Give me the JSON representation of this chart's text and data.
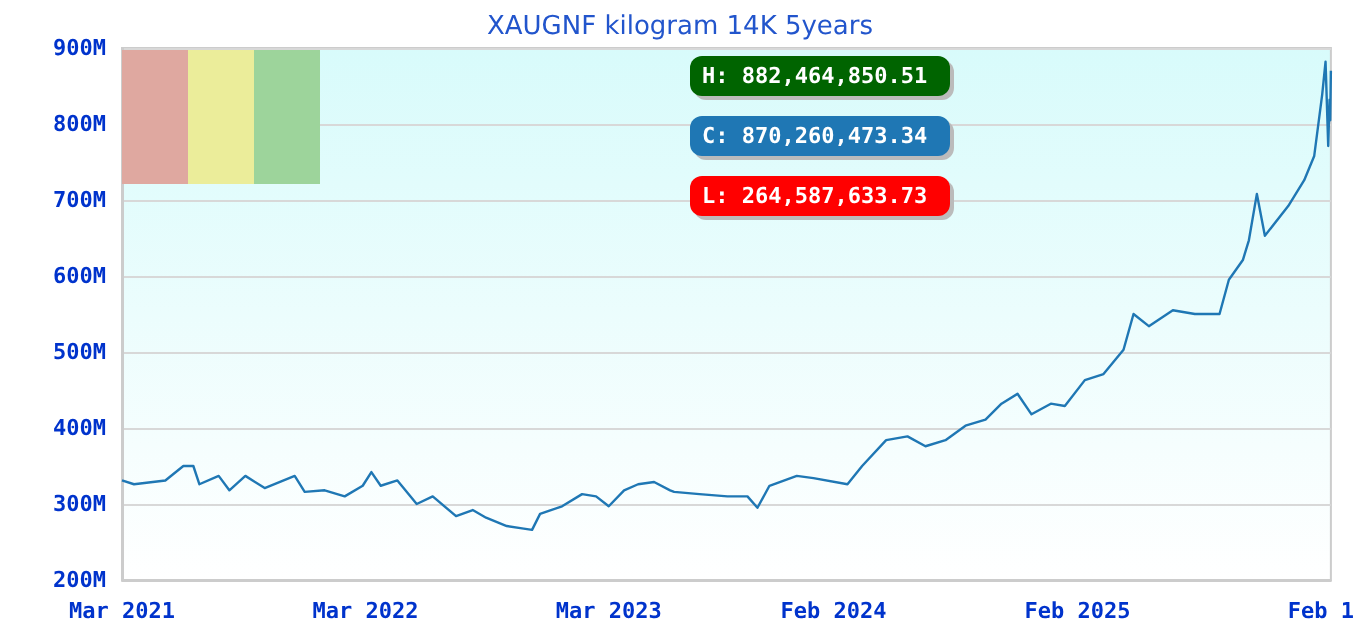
{
  "chart_data": {
    "type": "line",
    "title": "XAUGNF kilogram 14K 5years",
    "grid": "y",
    "marker": "none",
    "line_style": "solid",
    "xlim": [
      "2021-03-01",
      "2026-02-16"
    ],
    "xticks": [
      {
        "value": "2021-03-01",
        "label": "Mar 2021"
      },
      {
        "value": "2022-03-01",
        "label": "Mar 2022"
      },
      {
        "value": "2023-03-01",
        "label": "Mar 2023"
      },
      {
        "value": "2024-02-01",
        "label": "Feb 2024"
      },
      {
        "value": "2025-02-01",
        "label": "Feb 2025"
      },
      {
        "value": "2026-02-01",
        "label": "Feb 1"
      }
    ],
    "ylim": [
      200,
      900
    ],
    "yticks": [
      {
        "value": 200,
        "label": "200M"
      },
      {
        "value": 300,
        "label": "300M"
      },
      {
        "value": 400,
        "label": "400M"
      },
      {
        "value": 500,
        "label": "500M"
      },
      {
        "value": 600,
        "label": "600M"
      },
      {
        "value": 700,
        "label": "700M"
      },
      {
        "value": 800,
        "label": "800M"
      },
      {
        "value": 900,
        "label": "900M"
      }
    ],
    "annotations": [
      "H: 882,464,850.51",
      "C: 870,260,473.34",
      "L: 264,587,633.73"
    ],
    "x": [
      "2021-03-01",
      "2021-03-19",
      "2021-05-05",
      "2021-06-01",
      "2021-06-16",
      "2021-06-25",
      "2021-07-24",
      "2021-08-09",
      "2021-09-02",
      "2021-10-01",
      "2021-11-15",
      "2021-11-30",
      "2021-12-30",
      "2022-01-29",
      "2022-02-25",
      "2022-03-10",
      "2022-03-24",
      "2022-04-18",
      "2022-05-17",
      "2022-06-10",
      "2022-07-15",
      "2022-08-09",
      "2022-08-29",
      "2022-09-29",
      "2022-10-22",
      "2022-11-06",
      "2022-11-18",
      "2022-12-21",
      "2023-01-20",
      "2023-02-10",
      "2023-03-01",
      "2023-03-24",
      "2023-04-14",
      "2023-05-08",
      "2023-06-01",
      "2023-06-07",
      "2023-07-15",
      "2023-08-26",
      "2023-09-25",
      "2023-10-10",
      "2023-10-28",
      "2023-12-08",
      "2024-01-02",
      "2024-02-22",
      "2024-03-15",
      "2024-04-20",
      "2024-05-22",
      "2024-06-18",
      "2024-07-18",
      "2024-08-17",
      "2024-09-16",
      "2024-10-10",
      "2024-11-03",
      "2024-11-24",
      "2024-12-23",
      "2025-01-13",
      "2025-02-12",
      "2025-03-12",
      "2025-04-11",
      "2025-04-26",
      "2025-05-19",
      "2025-06-24",
      "2025-07-27",
      "2025-09-02",
      "2025-09-16",
      "2025-10-07",
      "2025-10-16",
      "2025-10-28",
      "2025-11-09",
      "2025-12-14",
      "2026-01-07",
      "2026-01-22",
      "2026-02-03",
      "2026-02-08",
      "2026-02-12",
      "2026-02-14",
      "2026-02-15",
      "2026-02-16"
    ],
    "series": [
      {
        "color": "#1f77b4",
        "values": [
          331,
          326,
          331,
          350,
          350,
          326,
          337,
          318,
          337,
          321,
          337,
          316,
          318,
          310,
          324,
          342,
          324,
          331,
          300,
          310,
          284,
          292,
          282,
          271,
          268,
          266,
          287,
          297,
          313,
          310,
          297,
          318,
          326,
          329,
          318,
          316,
          313,
          310,
          310,
          295,
          324,
          337,
          334,
          326,
          350,
          384,
          389,
          376,
          384,
          403,
          411,
          432,
          445,
          418,
          432,
          429,
          463,
          471,
          503,
          550,
          534,
          555,
          550,
          550,
          595,
          621,
          647,
          708,
          653,
          692,
          726,
          758,
          839,
          882,
          771,
          832,
          805,
          870
        ]
      }
    ]
  }
}
